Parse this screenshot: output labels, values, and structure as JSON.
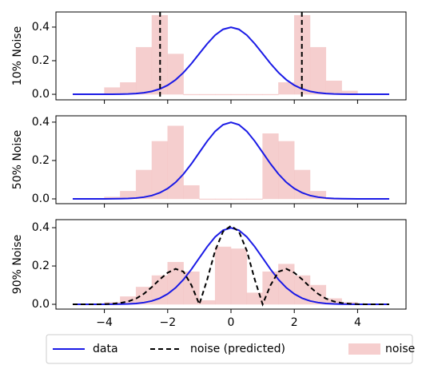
{
  "chart_data": [
    {
      "type": "line",
      "ylabel": "10% Noise",
      "xlim": [
        -5.53,
        5.53
      ],
      "ylim": [
        -0.033,
        0.49
      ],
      "xticks": [
        -4,
        -2,
        0,
        2,
        4
      ],
      "yticks": [
        {
          "value": 0,
          "label": "0.0"
        },
        0.2,
        0.4
      ],
      "x": [
        -5,
        -4.75,
        -4.5,
        -4.25,
        -4,
        -3.75,
        -3.5,
        -3.25,
        -3,
        -2.75,
        -2.5,
        -2.25,
        -2,
        -1.75,
        -1.5,
        -1.25,
        -1,
        -0.75,
        -0.5,
        -0.25,
        0,
        0.25,
        0.5,
        0.75,
        1,
        1.25,
        1.5,
        1.75,
        2,
        2.25,
        2.5,
        2.75,
        3,
        3.25,
        3.5,
        3.75,
        4,
        4.25,
        4.5,
        4.75,
        5
      ],
      "series": [
        {
          "name": "data",
          "color": "#1a1ae6",
          "values": [
            0,
            0,
            0,
            0,
            0.0001,
            0.0004,
            0.0009,
            0.002,
            0.0044,
            0.0091,
            0.0175,
            0.0317,
            0.054,
            0.0863,
            0.1295,
            0.1826,
            0.242,
            0.3011,
            0.3521,
            0.3867,
            0.3989,
            0.3867,
            0.3521,
            0.3011,
            0.242,
            0.1826,
            0.1295,
            0.0863,
            0.054,
            0.0317,
            0.0175,
            0.0091,
            0.0044,
            0.002,
            0.0009,
            0.0004,
            0.0001,
            0,
            0,
            0,
            0
          ]
        }
      ],
      "vlines": {
        "name": "noise (predicted)",
        "color": "#000000",
        "values": [
          -2.24,
          2.24
        ]
      },
      "histogram": {
        "name": "noise",
        "color": "#f4c6c6",
        "bins": [
          -4,
          -3.5,
          -3,
          -2.5,
          -2,
          -1.5,
          -1,
          -0.5,
          0,
          0.5,
          1,
          1.5,
          2,
          2.5,
          3,
          3.5,
          4
        ],
        "counts": [
          0.04,
          0.07,
          0.28,
          0.47,
          0.24,
          0,
          0,
          0,
          0,
          0,
          0,
          0.07,
          0.47,
          0.28,
          0.08,
          0.02
        ]
      }
    },
    {
      "type": "line",
      "ylabel": "50% Noise",
      "xlim": [
        -5.53,
        5.53
      ],
      "ylim": [
        -0.025,
        0.433
      ],
      "xticks": [
        -4,
        -2,
        0,
        2,
        4
      ],
      "yticks": [
        {
          "value": 0,
          "label": "0.0"
        },
        0.2,
        0.4
      ],
      "x": [
        -5,
        -4.75,
        -4.5,
        -4.25,
        -4,
        -3.75,
        -3.5,
        -3.25,
        -3,
        -2.75,
        -2.5,
        -2.25,
        -2,
        -1.75,
        -1.5,
        -1.25,
        -1,
        -0.75,
        -0.5,
        -0.25,
        0,
        0.25,
        0.5,
        0.75,
        1,
        1.25,
        1.5,
        1.75,
        2,
        2.25,
        2.5,
        2.75,
        3,
        3.25,
        3.5,
        3.75,
        4,
        4.25,
        4.5,
        4.75,
        5
      ],
      "series": [
        {
          "name": "data",
          "color": "#1a1ae6",
          "values": [
            0,
            0,
            0,
            0,
            0.0001,
            0.0004,
            0.0009,
            0.002,
            0.0044,
            0.0091,
            0.0175,
            0.0317,
            0.054,
            0.0863,
            0.1295,
            0.1826,
            0.242,
            0.3011,
            0.3521,
            0.3867,
            0.3989,
            0.3867,
            0.3521,
            0.3011,
            0.242,
            0.1826,
            0.1295,
            0.0863,
            0.054,
            0.0317,
            0.0175,
            0.0091,
            0.0044,
            0.002,
            0.0009,
            0.0004,
            0.0001,
            0,
            0,
            0,
            0
          ]
        }
      ],
      "histogram": {
        "name": "noise",
        "color": "#f4c6c6",
        "bins": [
          -4,
          -3.5,
          -3,
          -2.5,
          -2,
          -1.5,
          -1,
          -0.5,
          0,
          0.5,
          1,
          1.5,
          2,
          2.5,
          3,
          3.5,
          4
        ],
        "counts": [
          0.01,
          0.04,
          0.15,
          0.3,
          0.38,
          0.07,
          0,
          0,
          0,
          0,
          0.34,
          0.3,
          0.15,
          0.04,
          0,
          0
        ]
      }
    },
    {
      "type": "line",
      "ylabel": "90% Noise",
      "xlim": [
        -5.53,
        5.53
      ],
      "ylim": [
        -0.025,
        0.442
      ],
      "xticks": [
        {
          "value": -4,
          "label": "−4"
        },
        {
          "value": -2,
          "label": "−2"
        },
        0,
        2,
        4
      ],
      "yticks": [
        {
          "value": 0,
          "label": "0.0"
        },
        0.2,
        0.4
      ],
      "x": [
        -5,
        -4.75,
        -4.5,
        -4.25,
        -4,
        -3.75,
        -3.5,
        -3.25,
        -3,
        -2.75,
        -2.5,
        -2.25,
        -2,
        -1.75,
        -1.5,
        -1.25,
        -1,
        -0.75,
        -0.5,
        -0.25,
        0,
        0.25,
        0.5,
        0.75,
        1,
        1.25,
        1.5,
        1.75,
        2,
        2.25,
        2.5,
        2.75,
        3,
        3.25,
        3.5,
        3.75,
        4,
        4.25,
        4.5,
        4.75,
        5
      ],
      "series": [
        {
          "name": "data",
          "color": "#1a1ae6",
          "values": [
            0,
            0,
            0,
            0,
            0.0001,
            0.0004,
            0.0009,
            0.002,
            0.0044,
            0.0091,
            0.0175,
            0.0317,
            0.054,
            0.0863,
            0.1295,
            0.1826,
            0.242,
            0.3011,
            0.3521,
            0.3867,
            0.3989,
            0.3867,
            0.3521,
            0.3011,
            0.242,
            0.1826,
            0.1295,
            0.0863,
            0.054,
            0.0317,
            0.0175,
            0.0091,
            0.0044,
            0.002,
            0.0009,
            0.0004,
            0.0001,
            0,
            0,
            0,
            0
          ]
        },
        {
          "name": "noise (predicted)",
          "color": "#000000",
          "dash": true,
          "values": [
            0,
            0,
            0,
            0,
            0.001,
            0.003,
            0.007,
            0.015,
            0.03,
            0.055,
            0.09,
            0.13,
            0.165,
            0.185,
            0.17,
            0.1,
            0,
            0.13,
            0.28,
            0.38,
            0.41,
            0.38,
            0.28,
            0.13,
            0,
            0.1,
            0.17,
            0.185,
            0.165,
            0.13,
            0.09,
            0.055,
            0.03,
            0.015,
            0.007,
            0.003,
            0.001,
            0,
            0,
            0,
            0
          ]
        }
      ],
      "histogram": {
        "name": "noise",
        "color": "#f4c6c6",
        "bins": [
          -4,
          -3.5,
          -3,
          -2.5,
          -2,
          -1.5,
          -1,
          -0.5,
          0,
          0.5,
          1,
          1.5,
          2,
          2.5,
          3,
          3.5,
          4
        ],
        "counts": [
          0.01,
          0.04,
          0.09,
          0.15,
          0.22,
          0.17,
          0.02,
          0.3,
          0.29,
          0.06,
          0.17,
          0.21,
          0.15,
          0.1,
          0.03,
          0.01
        ]
      }
    }
  ]
}
